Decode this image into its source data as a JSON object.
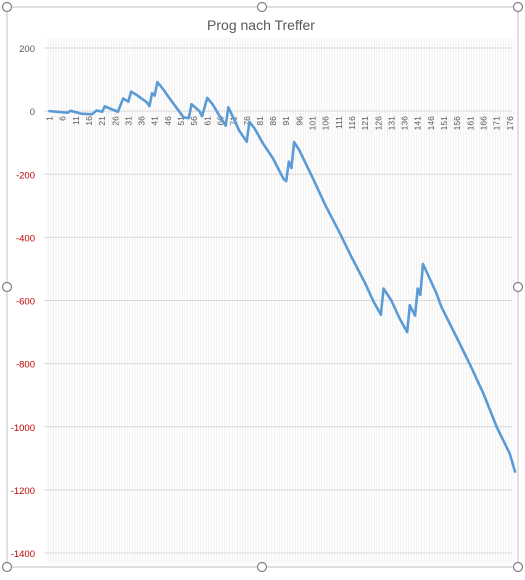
{
  "chart_data": {
    "type": "line",
    "title": "Prog nach Treffer",
    "xlabel": "",
    "ylabel": "",
    "ylim": [
      -1400,
      200
    ],
    "yticks": [
      200,
      0,
      -200,
      -400,
      -600,
      -800,
      -1000,
      -1200,
      -1400
    ],
    "ytick_labels": [
      "200",
      "0",
      "-200",
      "-400",
      "-600",
      "-800",
      "-1000",
      "-1200",
      "-1400"
    ],
    "xlim": [
      1,
      178
    ],
    "xticks": [
      1,
      6,
      11,
      16,
      21,
      26,
      31,
      36,
      41,
      46,
      51,
      56,
      61,
      66,
      71,
      76,
      81,
      86,
      91,
      96,
      101,
      106,
      111,
      116,
      121,
      126,
      131,
      136,
      141,
      146,
      151,
      156,
      161,
      166,
      171,
      176
    ],
    "xtick_labels": [
      "1",
      "6",
      "11",
      "16",
      "21",
      "26",
      "31",
      "36",
      "41",
      "46",
      "51",
      "56",
      "61",
      "66",
      "71",
      "76",
      "81",
      "86",
      "91",
      "96",
      "101",
      "106",
      "111",
      "116",
      "121",
      "126",
      "131",
      "136",
      "141",
      "146",
      "151",
      "156",
      "161",
      "166",
      "171",
      "176"
    ],
    "grid": true,
    "legend": "none",
    "colors": {
      "line": "#5B9BD5",
      "positive_tick_label": "#595959",
      "negative_tick_label": "#C00000",
      "gridline": "#D9D9D9",
      "title": "#595959"
    },
    "series": [
      {
        "points": [
          [
            1,
            0
          ],
          [
            5,
            -3
          ],
          [
            8,
            -5
          ],
          [
            9,
            1
          ],
          [
            13,
            -8
          ],
          [
            17,
            -10
          ],
          [
            19,
            2
          ],
          [
            21,
            -2
          ],
          [
            22,
            15
          ],
          [
            27,
            -2
          ],
          [
            29,
            40
          ],
          [
            31,
            30
          ],
          [
            32,
            62
          ],
          [
            34,
            52
          ],
          [
            38,
            28
          ],
          [
            39,
            16
          ],
          [
            40,
            57
          ],
          [
            41,
            49
          ],
          [
            42,
            92
          ],
          [
            44,
            72
          ],
          [
            46,
            48
          ],
          [
            52,
            -20
          ],
          [
            54,
            -22
          ],
          [
            55,
            22
          ],
          [
            58,
            0
          ],
          [
            59,
            -16
          ],
          [
            61,
            42
          ],
          [
            63,
            22
          ],
          [
            66,
            -20
          ],
          [
            68,
            -46
          ],
          [
            69,
            12
          ],
          [
            72,
            -40
          ],
          [
            73,
            -60
          ],
          [
            76,
            -97
          ],
          [
            77,
            -34
          ],
          [
            79,
            -55
          ],
          [
            82,
            -100
          ],
          [
            86,
            -150
          ],
          [
            90,
            -215
          ],
          [
            91,
            -222
          ],
          [
            92,
            -160
          ],
          [
            93,
            -180
          ],
          [
            94,
            -98
          ],
          [
            96,
            -124
          ],
          [
            101,
            -210
          ],
          [
            106,
            -300
          ],
          [
            111,
            -380
          ],
          [
            116,
            -465
          ],
          [
            121,
            -545
          ],
          [
            124,
            -600
          ],
          [
            127,
            -645
          ],
          [
            128,
            -562
          ],
          [
            131,
            -600
          ],
          [
            134,
            -655
          ],
          [
            137,
            -700
          ],
          [
            138,
            -615
          ],
          [
            140,
            -648
          ],
          [
            141,
            -562
          ],
          [
            142,
            -582
          ],
          [
            143,
            -484
          ],
          [
            148,
            -575
          ],
          [
            150,
            -620
          ],
          [
            156,
            -720
          ],
          [
            161,
            -805
          ],
          [
            166,
            -895
          ],
          [
            171,
            -1000
          ],
          [
            176,
            -1085
          ],
          [
            178,
            -1142
          ]
        ]
      }
    ]
  }
}
